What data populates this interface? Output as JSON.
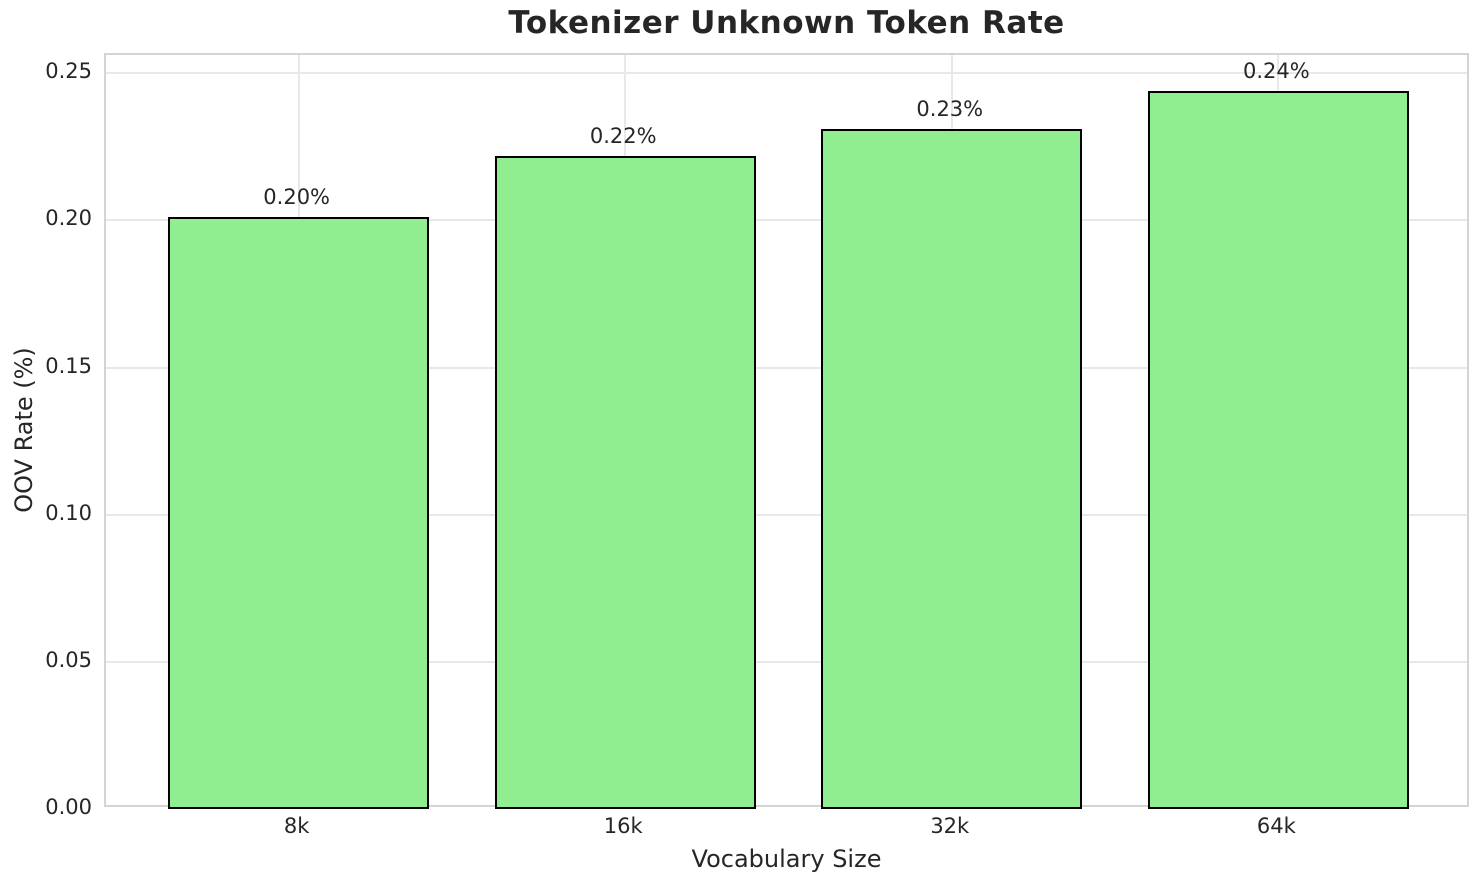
{
  "chart_data": {
    "type": "bar",
    "title": "Tokenizer Unknown Token Rate",
    "xlabel": "Vocabulary Size",
    "ylabel": "OOV Rate (%)",
    "categories": [
      "8k",
      "16k",
      "32k",
      "64k"
    ],
    "values": [
      0.201,
      0.222,
      0.231,
      0.244
    ],
    "bar_labels": [
      "0.20%",
      "0.22%",
      "0.23%",
      "0.24%"
    ],
    "yticks": [
      0.0,
      0.05,
      0.1,
      0.15,
      0.2,
      0.25
    ],
    "ytick_labels": [
      "0.00",
      "0.05",
      "0.10",
      "0.15",
      "0.20",
      "0.25"
    ],
    "ylim": [
      0,
      0.2562
    ],
    "xlim": [
      -0.59,
      3.59
    ],
    "bar_width": 0.8,
    "grid": true,
    "legend": "none",
    "colors": {
      "bar_fill": "#90EE90",
      "bar_edge": "#000000",
      "grid": "#e8e8e8",
      "spine": "#d4d4d4",
      "text": "#262626",
      "background": "#ffffff"
    }
  }
}
